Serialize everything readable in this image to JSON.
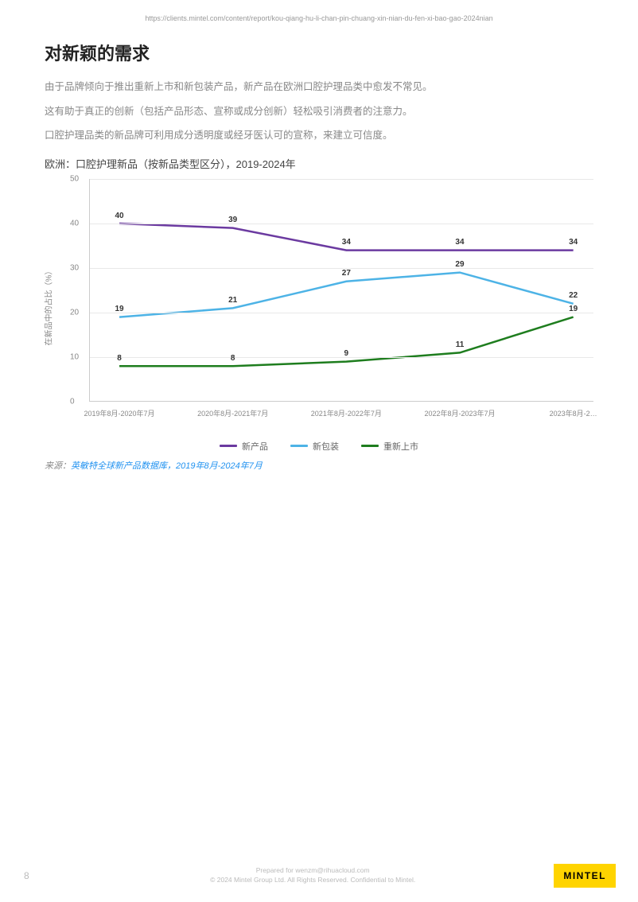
{
  "url": "https://clients.mintel.com/content/report/kou-qiang-hu-li-chan-pin-chuang-xin-nian-du-fen-xi-bao-gao-2024nian",
  "title": "对新颖的需求",
  "paragraphs": [
    "由于品牌倾向于推出重新上市和新包装产品，新产品在欧洲口腔护理品类中愈发不常见。",
    "这有助于真正的创新（包括产品形态、宣称或成分创新）轻松吸引消费者的注意力。",
    "口腔护理品类的新品牌可利用成分透明度或经牙医认可的宣称，来建立可信度。"
  ],
  "chart": {
    "title": "欧洲：口腔护理新品（按新品类型区分），2019-2024年",
    "y_axis_label": "在新品中的占比（%）",
    "ylim": [
      0,
      50
    ],
    "ytick_step": 10,
    "yticks": [
      0,
      10,
      20,
      30,
      40,
      50
    ],
    "categories": [
      "2019年8月-2020年7月",
      "2020年8月-2021年7月",
      "2021年8月-2022年7月",
      "2022年8月-2023年7月",
      "2023年8月-2…"
    ],
    "series": [
      {
        "name": "新产品",
        "color": "#6b3aa0",
        "values": [
          40,
          39,
          34,
          34,
          34
        ]
      },
      {
        "name": "新包装",
        "color": "#4db3e6",
        "values": [
          19,
          21,
          27,
          29,
          22
        ]
      },
      {
        "name": "重新上市",
        "color": "#1e7d1e",
        "values": [
          8,
          8,
          9,
          11,
          19
        ]
      }
    ],
    "line_width": 2.5,
    "background_color": "#ffffff",
    "grid_color": "#e8e8e8"
  },
  "source_prefix": "来源：",
  "source_link": "英敏特全球新产品数据库，2019年8月-2024年7月",
  "footer": {
    "page": "8",
    "line1": "Prepared for wenzm@rihuacloud.com",
    "line2": "© 2024 Mintel Group Ltd. All Rights Reserved. Confidential to Mintel.",
    "logo": "MINTEL"
  }
}
